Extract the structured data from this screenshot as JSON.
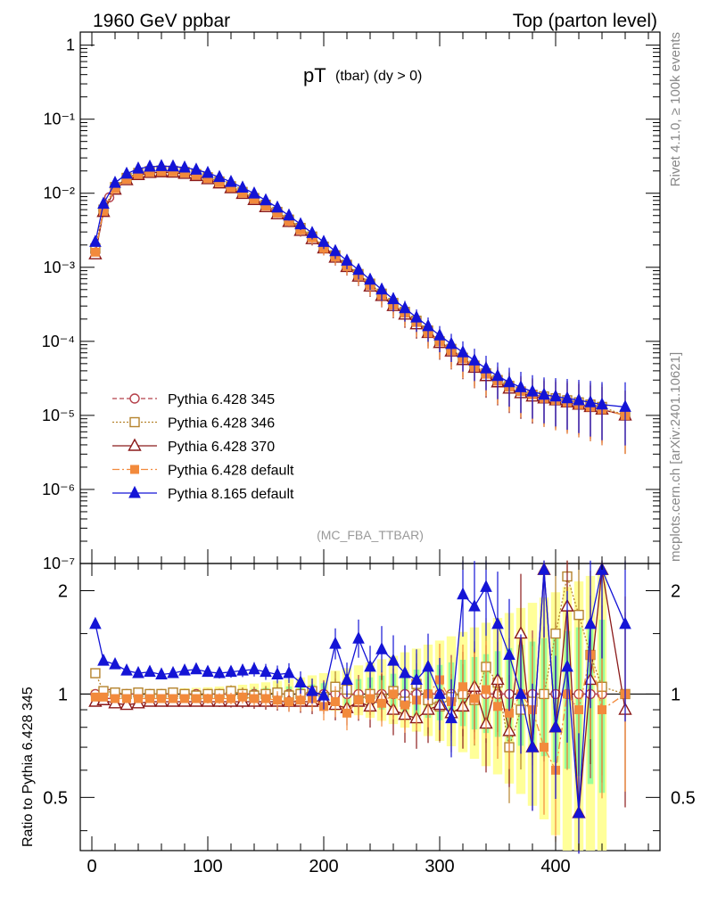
{
  "header": {
    "left": "1960 GeV ppbar",
    "right": "Top (parton level)"
  },
  "side_labels": {
    "rivet": "Rivet 4.1.0, ≥ 100k events",
    "mcplots": "mcplots.cern.ch [arXiv:2401.10621]"
  },
  "colors": {
    "p345": "#b5404a",
    "p346": "#b5832d",
    "p370": "#8b1a1a",
    "p6def": "#f28a3c",
    "p8": "#1414d6",
    "band_yellow": "#ffff99",
    "band_green": "#99ff99"
  },
  "chart_data": {
    "type": "line",
    "title_main": "pT",
    "title_sub": "(tbar) (dy > 0)",
    "analysis": "(MC_FBA_TTBAR)",
    "xlim": [
      -10,
      490
    ],
    "ylim_main": [
      1e-07,
      1.5
    ],
    "ylim_ratio": [
      0.35,
      2.4
    ],
    "main_ticks": [
      {
        "v": 1,
        "label": "1"
      },
      {
        "v": 0.1,
        "label": "10⁻¹"
      },
      {
        "v": 0.01,
        "label": "10⁻²"
      },
      {
        "v": 0.001,
        "label": "10⁻³"
      },
      {
        "v": 0.0001,
        "label": "10⁻⁴"
      },
      {
        "v": 1e-05,
        "label": "10⁻⁵"
      },
      {
        "v": 1e-06,
        "label": "10⁻⁶"
      },
      {
        "v": 1e-07,
        "label": "10⁻⁷"
      }
    ],
    "x_ticks": [
      {
        "v": 0,
        "label": "0"
      },
      {
        "v": 100,
        "label": "100"
      },
      {
        "v": 200,
        "label": "200"
      },
      {
        "v": 300,
        "label": "300"
      },
      {
        "v": 400,
        "label": "400"
      }
    ],
    "ratio_ticks": [
      {
        "v": 2,
        "label": "2"
      },
      {
        "v": 1,
        "label": "1"
      },
      {
        "v": 0.5,
        "label": "0.5"
      }
    ],
    "ratio_ylabel": "Ratio to Pythia 6.428 345",
    "series": [
      {
        "key": "p345",
        "name": "Pythia 6.428 345",
        "marker": "circle-open",
        "dash": "5,3",
        "x": [
          3,
          10,
          15,
          20,
          30,
          40,
          50,
          60,
          70,
          80,
          90,
          100,
          110,
          120,
          130,
          140,
          150,
          160,
          170,
          180,
          190,
          200,
          210,
          220,
          230,
          240,
          250,
          260,
          270,
          280,
          290,
          300,
          310,
          320,
          330,
          340,
          350,
          360,
          370,
          380,
          390,
          400,
          410,
          420,
          430,
          440
        ],
        "y": [
          0.0016,
          0.0058,
          0.0088,
          0.0118,
          0.0158,
          0.0185,
          0.0198,
          0.0202,
          0.02,
          0.0193,
          0.018,
          0.0163,
          0.0143,
          0.0123,
          0.0103,
          0.0085,
          0.0069,
          0.0055,
          0.0043,
          0.0033,
          0.0025,
          0.0019,
          0.00142,
          0.00106,
          0.00079,
          0.00058,
          0.00043,
          0.00032,
          0.00024,
          0.00018,
          0.000135,
          0.0001,
          7.7e-05,
          5.9e-05,
          4.6e-05,
          3.6e-05,
          2.9e-05,
          2.4e-05,
          2.1e-05,
          1.9e-05,
          1.8e-05,
          1.7e-05,
          1.6e-05,
          1.5e-05,
          1.4e-05,
          1.3e-05
        ],
        "ratio": [
          1.0,
          1.0,
          1.0,
          1.0,
          1.0,
          1.0,
          1.0,
          1.0,
          1.0,
          1.0,
          1.0,
          1.0,
          1.0,
          1.0,
          1.0,
          1.0,
          1.0,
          1.0,
          1.0,
          1.0,
          1.0,
          1.0,
          1.0,
          1.0,
          1.0,
          1.0,
          1.0,
          1.0,
          1.0,
          1.0,
          1.0,
          1.0,
          1.0,
          1.0,
          1.0,
          1.0,
          1.0,
          1.0,
          1.0,
          1.0,
          1.0,
          1.0,
          1.0,
          1.0,
          1.0,
          1.0
        ]
      },
      {
        "key": "p346",
        "name": "Pythia 6.428 346",
        "marker": "square-open",
        "dash": "2,2",
        "x": [
          3,
          10,
          20,
          30,
          40,
          50,
          60,
          70,
          80,
          90,
          100,
          110,
          120,
          130,
          140,
          150,
          160,
          170,
          180,
          190,
          200,
          210,
          220,
          230,
          240,
          250,
          260,
          270,
          280,
          290,
          300,
          310,
          320,
          330,
          340,
          350,
          360,
          370,
          380,
          390,
          400,
          410,
          420,
          430,
          440,
          460
        ],
        "y": [
          0.0018,
          0.006,
          0.0121,
          0.0161,
          0.0188,
          0.0199,
          0.0203,
          0.0201,
          0.0194,
          0.0181,
          0.0164,
          0.0144,
          0.0124,
          0.0104,
          0.0086,
          0.007,
          0.0056,
          0.0044,
          0.0034,
          0.0026,
          0.0019,
          0.00145,
          0.00108,
          0.00081,
          0.0006,
          0.00044,
          0.00033,
          0.00025,
          0.00019,
          0.00014,
          0.0001,
          7.9e-05,
          6e-05,
          4.7e-05,
          3.7e-05,
          3e-05,
          2.5e-05,
          2.1e-05,
          1.9e-05,
          1.8e-05,
          1.7e-05,
          1.6e-05,
          1.5e-05,
          1.4e-05,
          1.3e-05,
          1e-05
        ],
        "ratio": [
          1.15,
          1.02,
          1.01,
          1.0,
          1.01,
          1.0,
          1.0,
          1.01,
          1.0,
          0.99,
          1.0,
          1.0,
          1.02,
          1.0,
          0.99,
          1.0,
          1.01,
          0.99,
          1.0,
          1.02,
          0.98,
          1.05,
          1.03,
          0.96,
          1.0,
          0.97,
          1.02,
          0.95,
          1.07,
          0.96,
          0.92,
          0.98,
          1.0,
          0.96,
          1.2,
          1.08,
          0.7,
          0.9,
          0.95,
          1.0,
          1.5,
          2.2,
          1.7,
          1.3,
          1.05,
          1.0
        ]
      },
      {
        "key": "p370",
        "name": "Pythia 6.428 370",
        "marker": "triangle-open",
        "dash": "",
        "x": [
          3,
          10,
          20,
          30,
          40,
          50,
          60,
          70,
          80,
          90,
          100,
          110,
          120,
          130,
          140,
          150,
          160,
          170,
          180,
          190,
          200,
          210,
          220,
          230,
          240,
          250,
          260,
          270,
          280,
          290,
          300,
          310,
          320,
          330,
          340,
          350,
          360,
          370,
          380,
          390,
          400,
          410,
          420,
          430,
          440,
          460
        ],
        "y": [
          0.0015,
          0.0056,
          0.0112,
          0.015,
          0.0176,
          0.0188,
          0.0192,
          0.019,
          0.0183,
          0.0171,
          0.0155,
          0.0136,
          0.0117,
          0.0098,
          0.0081,
          0.0065,
          0.0052,
          0.0041,
          0.0031,
          0.0024,
          0.0018,
          0.00135,
          0.00101,
          0.00075,
          0.00055,
          0.00041,
          0.0003,
          0.00023,
          0.00017,
          0.00013,
          9.5e-05,
          7.3e-05,
          5.6e-05,
          4.4e-05,
          3.4e-05,
          2.8e-05,
          2.3e-05,
          2e-05,
          1.8e-05,
          1.7e-05,
          1.6e-05,
          1.5e-05,
          1.4e-05,
          1.3e-05,
          1.2e-05,
          1e-05
        ],
        "ratio": [
          0.95,
          0.96,
          0.94,
          0.93,
          0.94,
          0.95,
          0.95,
          0.95,
          0.95,
          0.95,
          0.95,
          0.95,
          0.95,
          0.95,
          0.95,
          0.95,
          0.95,
          0.95,
          0.95,
          0.95,
          0.96,
          0.93,
          0.91,
          0.95,
          0.92,
          0.98,
          0.9,
          0.87,
          0.85,
          0.9,
          0.93,
          0.88,
          0.92,
          1.05,
          0.82,
          1.1,
          0.78,
          1.5,
          0.7,
          2.3,
          0.8,
          1.8,
          0.45,
          1.1,
          2.3,
          0.9
        ]
      },
      {
        "key": "p6def",
        "name": "Pythia 6.428 default",
        "marker": "square-filled",
        "dash": "8,3,2,3",
        "x": [
          3,
          10,
          20,
          30,
          40,
          50,
          60,
          70,
          80,
          90,
          100,
          110,
          120,
          130,
          140,
          150,
          160,
          170,
          180,
          190,
          200,
          210,
          220,
          230,
          240,
          250,
          260,
          270,
          280,
          290,
          300,
          310,
          320,
          330,
          340,
          350,
          360,
          370,
          380,
          390,
          400,
          410,
          420,
          430,
          440,
          460
        ],
        "y": [
          0.0016,
          0.0057,
          0.0115,
          0.0154,
          0.018,
          0.0192,
          0.0196,
          0.0194,
          0.0187,
          0.0175,
          0.0158,
          0.0139,
          0.0119,
          0.01,
          0.0083,
          0.0067,
          0.0054,
          0.0042,
          0.0032,
          0.0025,
          0.0018,
          0.00138,
          0.00103,
          0.00077,
          0.00057,
          0.00042,
          0.00031,
          0.00024,
          0.00018,
          0.00013,
          9.8e-05,
          7.5e-05,
          5.8e-05,
          4.5e-05,
          3.6e-05,
          2.9e-05,
          2.4e-05,
          2.1e-05,
          1.9e-05,
          1.7e-05,
          1.6e-05,
          1.5e-05,
          1.4e-05,
          1.3e-05,
          1.2e-05,
          1e-05
        ],
        "ratio": [
          0.98,
          0.98,
          0.97,
          0.97,
          0.97,
          0.97,
          0.97,
          0.97,
          0.97,
          0.97,
          0.97,
          0.97,
          0.97,
          0.98,
          0.97,
          0.97,
          0.96,
          0.95,
          0.96,
          0.97,
          0.92,
          0.95,
          0.88,
          0.96,
          0.97,
          0.94,
          1.0,
          0.93,
          0.96,
          1.0,
          1.1,
          0.95,
          1.05,
          0.97,
          1.03,
          0.92,
          0.88,
          1.0,
          0.9,
          0.7,
          0.6,
          1.0,
          0.9,
          1.3,
          0.9,
          1.0
        ]
      },
      {
        "key": "p8",
        "name": "Pythia 8.165 default",
        "marker": "triangle-filled",
        "dash": "",
        "x": [
          3,
          10,
          20,
          30,
          40,
          50,
          60,
          70,
          80,
          90,
          100,
          110,
          120,
          130,
          140,
          150,
          160,
          170,
          180,
          190,
          200,
          210,
          220,
          230,
          240,
          250,
          260,
          270,
          280,
          290,
          300,
          310,
          320,
          330,
          340,
          350,
          360,
          370,
          380,
          390,
          400,
          410,
          420,
          430,
          440,
          460
        ],
        "y": [
          0.0022,
          0.0072,
          0.0138,
          0.0183,
          0.0215,
          0.0228,
          0.0232,
          0.023,
          0.0222,
          0.0208,
          0.0188,
          0.0165,
          0.0142,
          0.0119,
          0.0099,
          0.008,
          0.0064,
          0.005,
          0.0038,
          0.0029,
          0.0022,
          0.00165,
          0.00123,
          0.00092,
          0.00068,
          0.0005,
          0.00037,
          0.00028,
          0.00021,
          0.00016,
          0.00012,
          9.2e-05,
          7.1e-05,
          5.5e-05,
          4.3e-05,
          3.4e-05,
          2.8e-05,
          2.4e-05,
          2.1e-05,
          1.9e-05,
          1.8e-05,
          1.7e-05,
          1.6e-05,
          1.5e-05,
          1.4e-05,
          1.3e-05
        ],
        "ratio": [
          1.6,
          1.25,
          1.22,
          1.17,
          1.15,
          1.16,
          1.14,
          1.15,
          1.17,
          1.18,
          1.16,
          1.15,
          1.16,
          1.17,
          1.18,
          1.16,
          1.14,
          1.15,
          1.08,
          1.02,
          0.99,
          1.4,
          1.1,
          1.45,
          1.2,
          1.35,
          1.25,
          1.15,
          1.1,
          1.2,
          1.0,
          0.85,
          1.95,
          1.8,
          2.05,
          1.6,
          1.3,
          1.0,
          0.7,
          2.3,
          0.8,
          1.2,
          0.45,
          1.6,
          2.3,
          1.6
        ]
      }
    ]
  }
}
